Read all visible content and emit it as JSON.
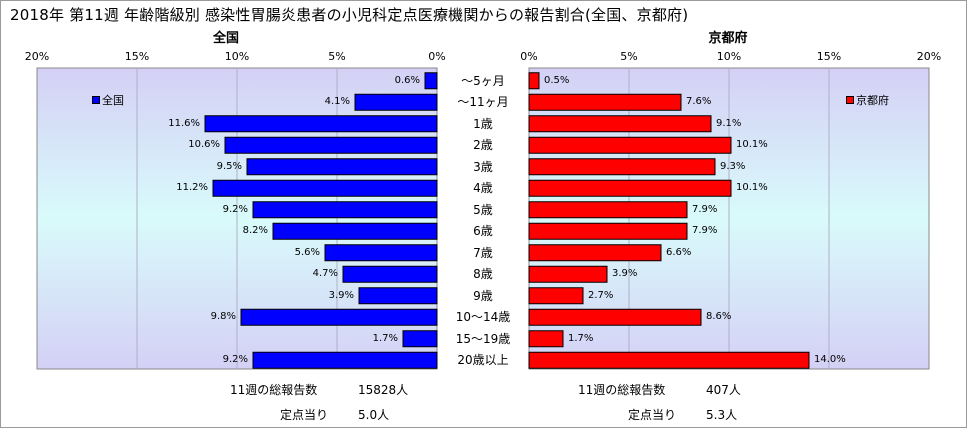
{
  "title": "2018年 第11週 年齢階級別 感染性胃腸炎患者の小児科定点医療機関からの報告割合(全国、京都府)",
  "chart_data": [
    {
      "type": "bar",
      "panel": "全国",
      "orientation": "horizontal",
      "direction": "right-to-left",
      "color": "#0000ff",
      "legend": "全国",
      "legend_position": "top-left",
      "xlim": [
        0,
        20
      ],
      "ticks": [
        "20%",
        "15%",
        "10%",
        "5%",
        "0%"
      ],
      "categories": [
        "～5ヶ月",
        "～11ヶ月",
        "1歳",
        "2歳",
        "3歳",
        "4歳",
        "5歳",
        "6歳",
        "7歳",
        "8歳",
        "9歳",
        "10～14歳",
        "15～19歳",
        "20歳以上"
      ],
      "values": [
        0.6,
        4.1,
        11.6,
        10.6,
        9.5,
        11.2,
        9.2,
        8.2,
        5.6,
        4.7,
        3.9,
        9.8,
        1.7,
        9.2
      ],
      "labels": [
        "0.6%",
        "4.1%",
        "11.6%",
        "10.6%",
        "9.5%",
        "11.2%",
        "9.2%",
        "8.2%",
        "5.6%",
        "4.7%",
        "3.9%",
        "9.8%",
        "1.7%",
        "9.2%"
      ],
      "grid": true
    },
    {
      "type": "bar",
      "panel": "京都府",
      "orientation": "horizontal",
      "direction": "left-to-right",
      "color": "#ff0000",
      "legend": "京都府",
      "legend_position": "top-right",
      "xlim": [
        0,
        20
      ],
      "ticks": [
        "0%",
        "5%",
        "10%",
        "15%",
        "20%"
      ],
      "categories": [
        "～5ヶ月",
        "～11ヶ月",
        "1歳",
        "2歳",
        "3歳",
        "4歳",
        "5歳",
        "6歳",
        "7歳",
        "8歳",
        "9歳",
        "10～14歳",
        "15～19歳",
        "20歳以上"
      ],
      "values": [
        0.5,
        7.6,
        9.1,
        10.1,
        9.3,
        10.1,
        7.9,
        7.9,
        6.6,
        3.9,
        2.7,
        8.6,
        1.7,
        14.0
      ],
      "labels": [
        "0.5%",
        "7.6%",
        "9.1%",
        "10.1%",
        "9.3%",
        "10.1%",
        "7.9%",
        "7.9%",
        "6.6%",
        "3.9%",
        "2.7%",
        "8.6%",
        "1.7%",
        "14.0%"
      ],
      "grid": true
    }
  ],
  "footer": {
    "left_total_label": "11週の総報告数",
    "left_total_value": "15828人",
    "left_per_label": "定点当り",
    "left_per_value": "5.0人",
    "right_total_label": "11週の総報告数",
    "right_total_value": "407人",
    "right_per_label": "定点当り",
    "right_per_value": "5.3人"
  }
}
